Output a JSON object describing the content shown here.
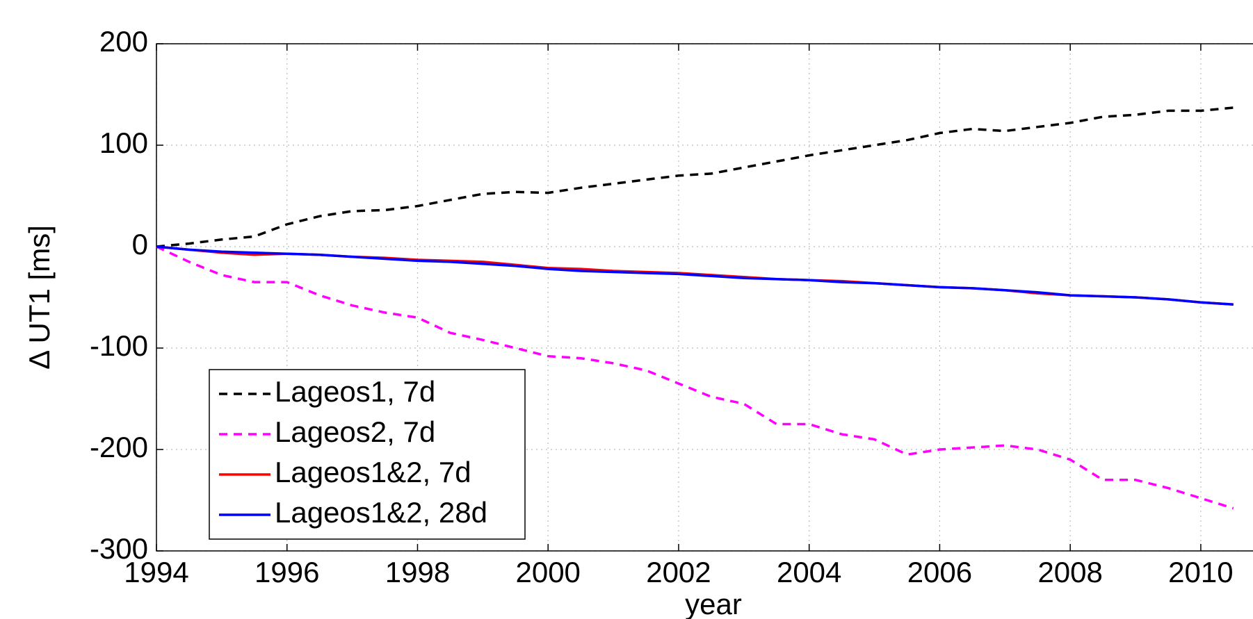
{
  "chart_data": {
    "type": "line",
    "x_label": "year",
    "y_label": "Δ UT1 [ms]",
    "x": [
      1994,
      1994.5,
      1995,
      1995.5,
      1996,
      1996.5,
      1997,
      1997.5,
      1998,
      1998.5,
      1999,
      1999.5,
      2000,
      2000.5,
      2001,
      2001.5,
      2002,
      2002.5,
      2003,
      2003.5,
      2004,
      2004.5,
      2005,
      2005.5,
      2006,
      2006.5,
      2007,
      2007.5,
      2008,
      2008.5,
      2009,
      2009.5,
      2010,
      2010.5
    ],
    "series": [
      {
        "name": "Lageos1, 7d",
        "color": "#000000",
        "dashed": true,
        "values": [
          0,
          3,
          7,
          10,
          22,
          30,
          35,
          36,
          40,
          46,
          52,
          54,
          53,
          58,
          62,
          66,
          70,
          72,
          78,
          84,
          90,
          95,
          100,
          105,
          112,
          116,
          114,
          118,
          122,
          128,
          130,
          134,
          134,
          137
        ]
      },
      {
        "name": "Lageos2, 7d",
        "color": "#ff00ff",
        "dashed": true,
        "values": [
          0,
          -15,
          -28,
          -35,
          -35,
          -48,
          -58,
          -65,
          -70,
          -85,
          -92,
          -100,
          -108,
          -110,
          -115,
          -122,
          -135,
          -148,
          -155,
          -175,
          -175,
          -185,
          -190,
          -205,
          -200,
          -198,
          -196,
          -200,
          -210,
          -230,
          -230,
          -238,
          -248,
          -258
        ]
      },
      {
        "name": "Lageos1&2, 7d",
        "color": "#ff0000",
        "dashed": false,
        "values": [
          0,
          -3,
          -6,
          -8,
          -7,
          -8,
          -10,
          -11,
          -13,
          -14,
          -15,
          -18,
          -21,
          -22,
          -24,
          -25,
          -26,
          -28,
          -30,
          -32,
          -33,
          -34,
          -36,
          -38,
          -40,
          -41,
          -43,
          -46,
          -48,
          -49,
          -50,
          -52,
          -55,
          -57
        ]
      },
      {
        "name": "Lageos1&2, 28d",
        "color": "#0000ff",
        "dashed": false,
        "values": [
          0,
          -3,
          -5,
          -6,
          -7,
          -8,
          -10,
          -12,
          -14,
          -15,
          -17,
          -19,
          -22,
          -24,
          -25,
          -26,
          -27,
          -29,
          -31,
          -32,
          -33,
          -35,
          -36,
          -38,
          -40,
          -41,
          -43,
          -45,
          -48,
          -49,
          -50,
          -52,
          -55,
          -57
        ]
      }
    ],
    "xlim": [
      1994,
      2010.8
    ],
    "xticks": [
      1994,
      1996,
      1998,
      2000,
      2002,
      2004,
      2006,
      2008,
      2010
    ],
    "ylim": [
      -300,
      200
    ],
    "yticks": [
      -300,
      -200,
      -100,
      0,
      100,
      200
    ],
    "grid": true,
    "legend": "lower left"
  }
}
